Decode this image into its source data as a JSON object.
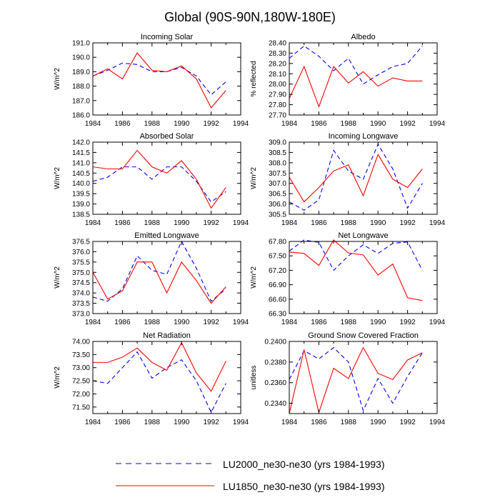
{
  "title": "Global (90S-90N,180W-180E)",
  "legend": [
    {
      "label": "LU2000_ne30-ne30 (yrs 1984-1993)",
      "color": "#0000ff",
      "dash": true
    },
    {
      "label": "LU1850_ne30-ne30 (yrs 1984-1993)",
      "color": "#ff0000",
      "dash": false
    }
  ],
  "x_axis": {
    "ticks": [
      1984,
      1986,
      1988,
      1990,
      1992,
      1994
    ],
    "range": [
      1984,
      1994
    ]
  },
  "chart_data": [
    {
      "type": "line",
      "title": "Incoming Solar",
      "ylabel": "W/m^2",
      "ylim": [
        186.0,
        191.0
      ],
      "yticks": [
        "186.0",
        "187.0",
        "188.0",
        "189.0",
        "190.0",
        "191.0"
      ],
      "x": [
        1984,
        1985,
        1986,
        1987,
        1988,
        1989,
        1990,
        1991,
        1992,
        1993
      ],
      "series": [
        {
          "name": "LU2000_ne30-ne30 (yrs 1984-1993)",
          "values": [
            188.7,
            189.1,
            189.6,
            189.5,
            189.0,
            189.0,
            189.3,
            188.7,
            187.4,
            188.3
          ]
        },
        {
          "name": "LU1850_ne30-ne30 (yrs 1984-1993)",
          "values": [
            188.7,
            189.2,
            188.5,
            190.3,
            189.1,
            189.0,
            189.4,
            188.5,
            186.5,
            187.7
          ]
        }
      ]
    },
    {
      "type": "line",
      "title": "Albedo",
      "ylabel": "% reflected",
      "ylim": [
        27.7,
        28.4
      ],
      "yticks": [
        "27.70",
        "27.80",
        "27.90",
        "28.00",
        "28.10",
        "28.20",
        "28.30",
        "28.40"
      ],
      "x": [
        1984,
        1985,
        1986,
        1987,
        1988,
        1989,
        1990,
        1991,
        1992,
        1993
      ],
      "series": [
        {
          "name": "LU2000_ne30-ne30 (yrs 1984-1993)",
          "values": [
            28.25,
            28.37,
            28.27,
            28.13,
            28.25,
            28.0,
            28.09,
            28.17,
            28.2,
            28.37
          ]
        },
        {
          "name": "LU1850_ne30-ne30 (yrs 1984-1993)",
          "values": [
            27.86,
            28.17,
            27.78,
            28.17,
            28.01,
            28.12,
            27.98,
            28.06,
            28.03,
            28.03
          ]
        }
      ]
    },
    {
      "type": "line",
      "title": "Absorbed Solar",
      "ylabel": "W/m^2",
      "ylim": [
        138.5,
        142.0
      ],
      "yticks": [
        "138.5",
        "139.0",
        "139.5",
        "140.0",
        "140.5",
        "141.0",
        "141.5",
        "142.0"
      ],
      "x": [
        1984,
        1985,
        1986,
        1987,
        1988,
        1989,
        1990,
        1991,
        1992,
        1993
      ],
      "series": [
        {
          "name": "LU2000_ne30-ne30 (yrs 1984-1993)",
          "values": [
            140.1,
            140.3,
            140.8,
            140.8,
            140.2,
            140.8,
            140.8,
            140.1,
            139.1,
            139.6
          ]
        },
        {
          "name": "LU1850_ne30-ne30 (yrs 1984-1993)",
          "values": [
            140.8,
            140.7,
            140.7,
            141.6,
            140.8,
            140.5,
            141.1,
            140.2,
            138.8,
            139.8
          ]
        }
      ]
    },
    {
      "type": "line",
      "title": "Incoming Longwave",
      "ylabel": "W/m^2",
      "ylim": [
        305.5,
        309.0
      ],
      "yticks": [
        "305.5",
        "306.0",
        "306.5",
        "307.0",
        "307.5",
        "308.0",
        "308.5",
        "309.0"
      ],
      "x": [
        1984,
        1985,
        1986,
        1987,
        1988,
        1989,
        1990,
        1991,
        1992,
        1993
      ],
      "series": [
        {
          "name": "LU2000_ne30-ne30 (yrs 1984-1993)",
          "values": [
            306.1,
            305.7,
            306.2,
            308.6,
            307.6,
            307.2,
            308.9,
            307.7,
            305.8,
            307.0
          ]
        },
        {
          "name": "LU1850_ne30-ne30 (yrs 1984-1993)",
          "values": [
            307.3,
            306.1,
            306.8,
            307.6,
            307.9,
            306.4,
            308.4,
            307.2,
            306.8,
            307.7
          ]
        }
      ]
    },
    {
      "type": "line",
      "title": "Emitted Longwave",
      "ylabel": "W/m^2",
      "ylim": [
        373.0,
        376.5
      ],
      "yticks": [
        "373.0",
        "373.5",
        "374.0",
        "374.5",
        "375.0",
        "375.5",
        "376.0",
        "376.5"
      ],
      "x": [
        1984,
        1985,
        1986,
        1987,
        1988,
        1989,
        1990,
        1991,
        1992,
        1993
      ],
      "series": [
        {
          "name": "LU2000_ne30-ne30 (yrs 1984-1993)",
          "values": [
            373.8,
            373.6,
            374.2,
            375.8,
            375.1,
            374.9,
            376.5,
            375.2,
            373.6,
            374.2
          ]
        },
        {
          "name": "LU1850_ne30-ne30 (yrs 1984-1993)",
          "values": [
            375.0,
            373.7,
            374.1,
            375.5,
            375.5,
            374.0,
            375.5,
            374.6,
            373.5,
            374.3
          ]
        }
      ]
    },
    {
      "type": "line",
      "title": "Net Longwave",
      "ylabel": "W/m^2",
      "ylim": [
        66.3,
        67.8
      ],
      "yticks": [
        "66.30",
        "66.60",
        "66.90",
        "67.20",
        "67.50",
        "67.80"
      ],
      "x": [
        1984,
        1985,
        1986,
        1987,
        1988,
        1989,
        1990,
        1991,
        1992,
        1993
      ],
      "series": [
        {
          "name": "LU2000_ne30-ne30 (yrs 1984-1993)",
          "values": [
            67.6,
            67.83,
            67.78,
            67.2,
            67.5,
            67.73,
            67.55,
            67.76,
            67.79,
            67.2
          ]
        },
        {
          "name": "LU1850_ne30-ne30 (yrs 1984-1993)",
          "values": [
            67.58,
            67.55,
            67.3,
            67.83,
            67.56,
            67.52,
            67.1,
            67.33,
            66.63,
            66.57
          ]
        }
      ]
    },
    {
      "type": "line",
      "title": "Net Radiation",
      "ylabel": "W/m^2",
      "ylim": [
        71.25,
        74.0
      ],
      "yticks": [
        "71.50",
        "72.00",
        "72.50",
        "73.00",
        "73.50",
        "74.00"
      ],
      "x": [
        1984,
        1985,
        1986,
        1987,
        1988,
        1989,
        1990,
        1991,
        1992,
        1993
      ],
      "series": [
        {
          "name": "LU2000_ne30-ne30 (yrs 1984-1993)",
          "values": [
            72.5,
            72.4,
            73.0,
            73.6,
            72.6,
            73.0,
            73.3,
            72.5,
            71.3,
            72.4
          ]
        },
        {
          "name": "LU1850_ne30-ne30 (yrs 1984-1993)",
          "values": [
            73.2,
            73.2,
            73.4,
            73.75,
            73.2,
            72.9,
            73.95,
            72.8,
            72.1,
            73.25
          ]
        }
      ]
    },
    {
      "type": "line",
      "title": "Ground Snow Covered Fraction",
      "ylabel": "unitless",
      "ylim": [
        0.233,
        0.24
      ],
      "yticks": [
        "0.2340",
        "0.2360",
        "0.2380",
        "0.2400"
      ],
      "x": [
        1984,
        1985,
        1986,
        1987,
        1988,
        1989,
        1990,
        1991,
        1992,
        1993
      ],
      "series": [
        {
          "name": "LU2000_ne30-ne30 (yrs 1984-1993)",
          "values": [
            0.2363,
            0.2391,
            0.2383,
            0.2394,
            0.238,
            0.2333,
            0.2364,
            0.234,
            0.2366,
            0.2389
          ]
        },
        {
          "name": "LU1850_ne30-ne30 (yrs 1984-1993)",
          "values": [
            0.233,
            0.2392,
            0.2331,
            0.2374,
            0.2364,
            0.2394,
            0.2369,
            0.2363,
            0.2382,
            0.2389
          ]
        }
      ]
    }
  ]
}
